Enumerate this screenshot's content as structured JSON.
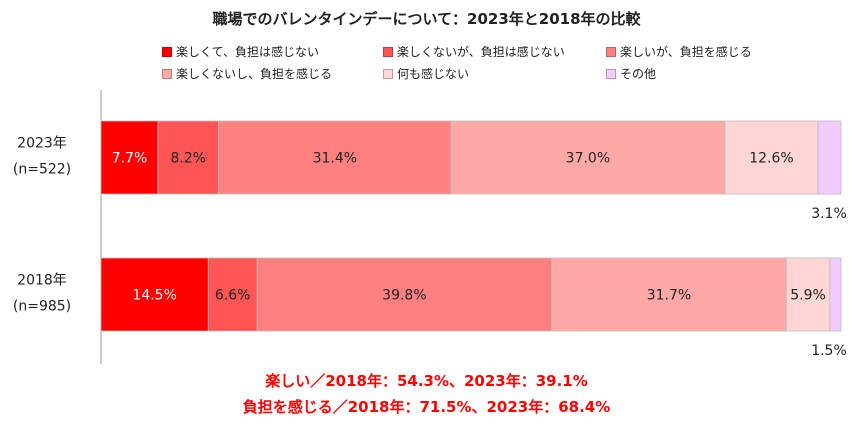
{
  "chart_data": {
    "type": "bar",
    "orientation": "horizontal",
    "stacked": true,
    "percent": true,
    "title": "職場でのバレンタインデーについて：2023年と2018年の比較",
    "categories": [
      {
        "label": "2023年",
        "sublabel": "(n=522)"
      },
      {
        "label": "2018年",
        "sublabel": "(n=985)"
      }
    ],
    "series": [
      {
        "name": "楽しくて、負担は感じない",
        "color": "#ff0000",
        "values": [
          7.7,
          14.5
        ],
        "labels": [
          "7.7%",
          "14.5%"
        ]
      },
      {
        "name": "楽しくないが、負担は感じない",
        "color": "#ff5555",
        "values": [
          8.2,
          6.6
        ],
        "labels": [
          "8.2%",
          "6.6%"
        ]
      },
      {
        "name": "楽しいが、負担を感じる",
        "color": "#ff8080",
        "values": [
          31.4,
          39.8
        ],
        "labels": [
          "31.4%",
          "39.8%"
        ]
      },
      {
        "name": "楽しくないし、負担を感じる",
        "color": "#ffa8a8",
        "values": [
          37.0,
          31.7
        ],
        "labels": [
          "37.0%",
          "31.7%"
        ]
      },
      {
        "name": "何も感じない",
        "color": "#ffd6d6",
        "values": [
          12.6,
          5.9
        ],
        "labels": [
          "12.6%",
          "5.9%"
        ]
      },
      {
        "name": "その他",
        "color": "#f2ccff",
        "values": [
          3.1,
          1.5
        ],
        "labels": [
          "3.1%",
          "1.5%"
        ]
      }
    ],
    "legend_position": "top",
    "grid": false
  },
  "summary": {
    "line1": "楽しい／2018年：54.3%、2023年：39.1%",
    "line2": "負担を感じる／2018年：71.5%、2023年：68.4%"
  }
}
